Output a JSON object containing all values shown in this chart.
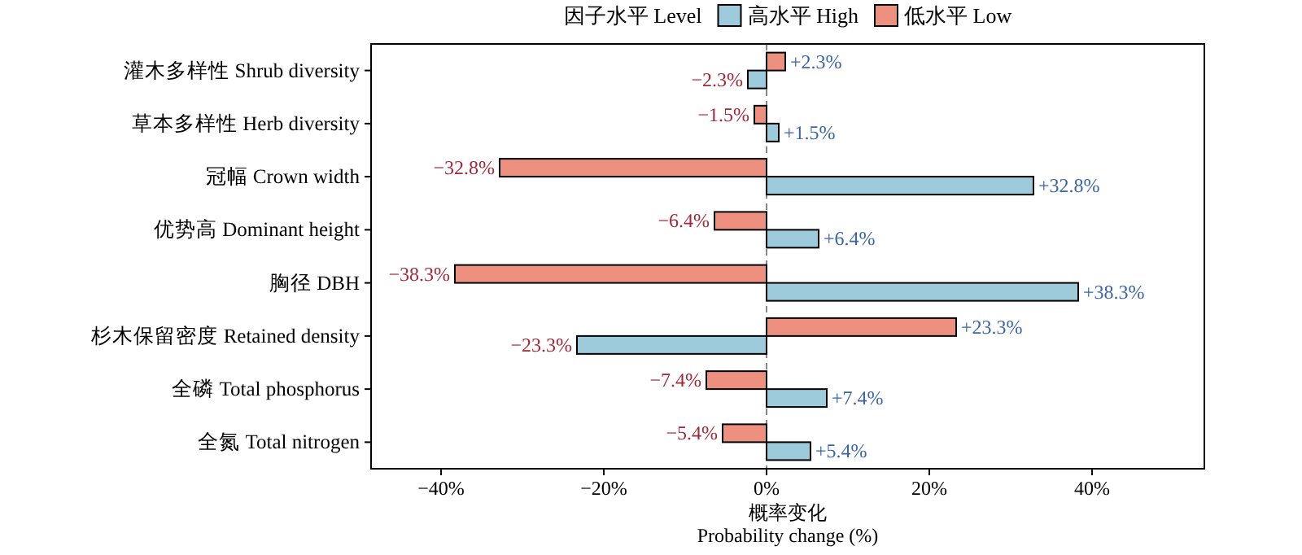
{
  "chart_data": {
    "type": "bar",
    "orientation": "horizontal",
    "xlabel": "概率变化\nProbability change (%)",
    "legend_title": "因子水平 Level",
    "legend": "top",
    "categories": [
      "灌木多样性 Shrub diversity",
      "草本多样性 Herb diversity",
      "冠幅 Crown width",
      "优势高 Dominant height",
      "胸径 DBH",
      "杉木保留密度 Retained density",
      "全磷 Total phosphorus",
      "全氮 Total nitrogen"
    ],
    "series": [
      {
        "name": "高水平 High",
        "color": "#9dcbdc",
        "values": [
          -2.3,
          1.5,
          32.8,
          6.4,
          38.3,
          -23.3,
          7.4,
          5.4
        ],
        "value_labels": [
          "−2.3%",
          "+1.5%",
          "+32.8%",
          "+6.4%",
          "+38.3%",
          "−23.3%",
          "+7.4%",
          "+5.4%"
        ]
      },
      {
        "name": "低水平 Low",
        "color": "#ee9080",
        "values": [
          2.3,
          -1.5,
          -32.8,
          -6.4,
          -38.3,
          23.3,
          -7.4,
          -5.4
        ],
        "value_labels": [
          "+2.3%",
          "−1.5%",
          "−32.8%",
          "−6.4%",
          "−38.3%",
          "+23.3%",
          "−7.4%",
          "−5.4%"
        ]
      }
    ],
    "xlim": [
      -48.6,
      53.8
    ],
    "xticks": [
      {
        "value": -40,
        "label": "−40%"
      },
      {
        "value": -20,
        "label": "−20%"
      },
      {
        "value": 0,
        "label": "0%"
      },
      {
        "value": 20,
        "label": "20%"
      },
      {
        "value": 40,
        "label": "40%"
      }
    ],
    "ref_lines": [
      {
        "axis": "x",
        "value": 0,
        "label": null,
        "color": "#888888",
        "line_style": "dashed"
      }
    ],
    "grid": false
  }
}
